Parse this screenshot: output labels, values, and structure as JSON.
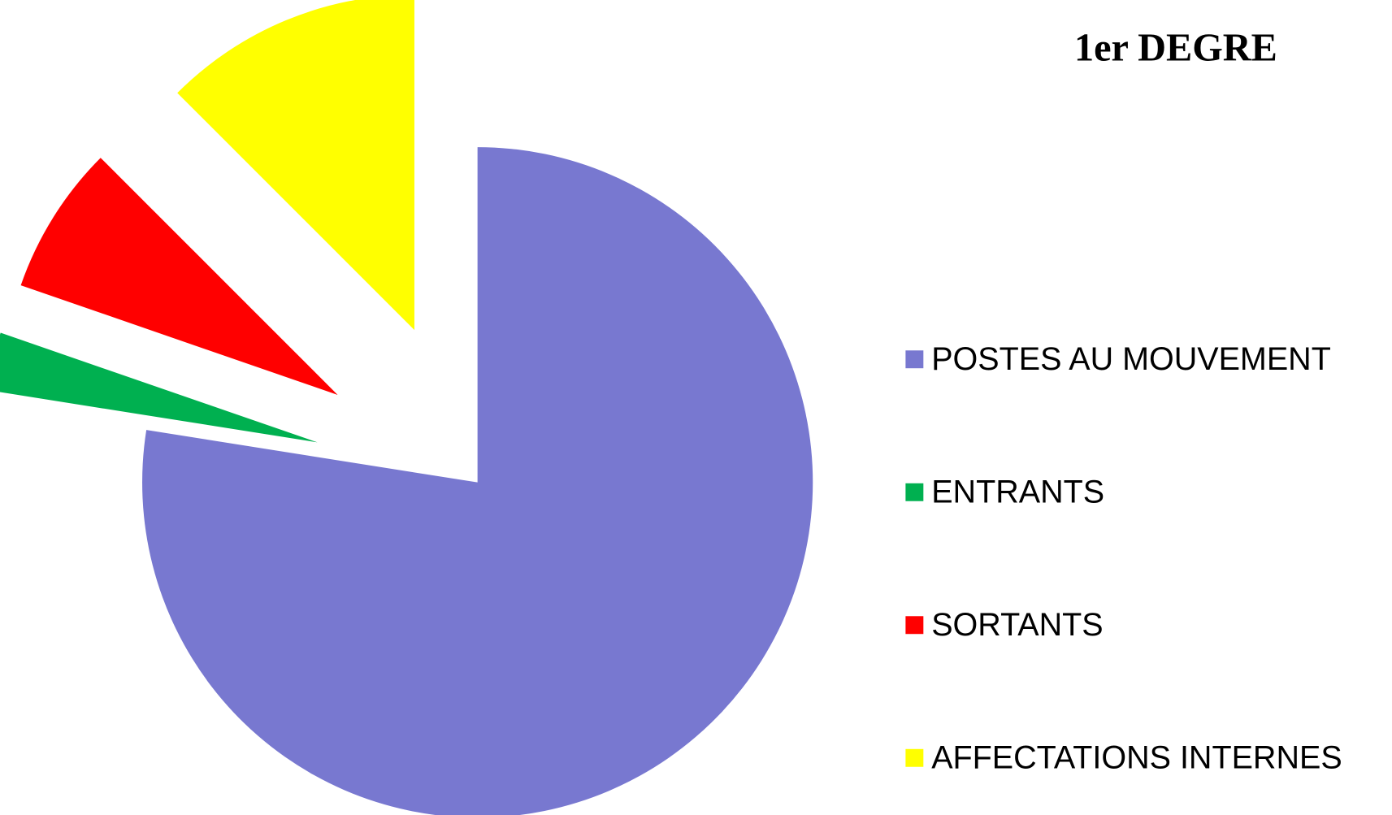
{
  "chart_data": {
    "type": "pie",
    "title": "1er DEGRE",
    "categories": [
      "POSTES AU MOUVEMENT",
      "ENTRANTS",
      "SORTANTS",
      "AFFECTATIONS INTERNES"
    ],
    "values": [
      77.5,
      2.8,
      7.2,
      12.5
    ],
    "colors": [
      "#7878d0",
      "#00b050",
      "#ff0000",
      "#ffff00"
    ],
    "legend": "right",
    "exploded": [
      false,
      true,
      true,
      true
    ]
  }
}
